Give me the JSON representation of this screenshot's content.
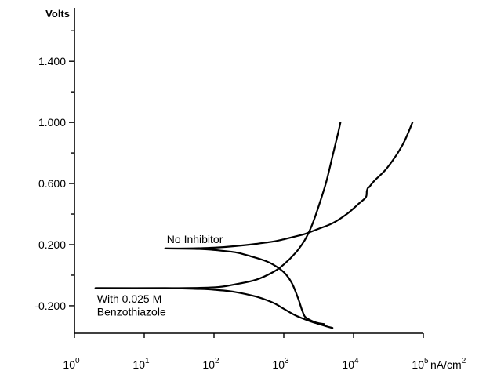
{
  "chart_data": {
    "type": "line",
    "title": "",
    "xlabel": "nA/cm2",
    "ylabel": "Volts",
    "x_scale": "log",
    "xlim": [
      1,
      100000
    ],
    "ylim": [
      -0.38,
      1.75
    ],
    "x_ticks": [
      {
        "value": 1,
        "base": "10",
        "exp": "0"
      },
      {
        "value": 10,
        "base": "10",
        "exp": "1"
      },
      {
        "value": 100,
        "base": "10",
        "exp": "2"
      },
      {
        "value": 1000,
        "base": "10",
        "exp": "3"
      },
      {
        "value": 10000,
        "base": "10",
        "exp": "4"
      },
      {
        "value": 100000,
        "base": "10",
        "exp": "5"
      }
    ],
    "x_unit": {
      "base": "nA/cm",
      "exp": "2"
    },
    "y_label_ticks": [
      {
        "value": 1.4,
        "label": "1.400"
      },
      {
        "value": 1.0,
        "label": "1.000"
      },
      {
        "value": 0.6,
        "label": "0.600"
      },
      {
        "value": 0.2,
        "label": "0.200"
      },
      {
        "value": -0.2,
        "label": "-0.200"
      }
    ],
    "y_minor_ticks": [
      1.6,
      1.2,
      0.8,
      0.4,
      0.0
    ],
    "grid": false,
    "legend": "none",
    "annotations": [
      {
        "text": "No Inhibitor",
        "x": 20,
        "y": 0.235
      },
      {
        "text": "With 0.025 M",
        "x": 2,
        "y": -0.155
      },
      {
        "text": "Benzothiazole",
        "x": 2,
        "y": -0.24
      }
    ],
    "series": [
      {
        "key": "no-inhibitor-anodic",
        "x": [
          20,
          40,
          100,
          200,
          400,
          700,
          1000,
          1500,
          2000,
          3000,
          5000,
          8000,
          12000,
          15000,
          15500,
          16000,
          17000,
          20000,
          30000,
          50000,
          70000
        ],
        "y": [
          0.175,
          0.175,
          0.18,
          0.19,
          0.205,
          0.22,
          0.235,
          0.255,
          0.27,
          0.3,
          0.34,
          0.4,
          0.47,
          0.51,
          0.55,
          0.57,
          0.58,
          0.62,
          0.7,
          0.85,
          1.0
        ]
      },
      {
        "key": "no-inhibitor-cathodic",
        "x": [
          20,
          60,
          100,
          200,
          300,
          500,
          700,
          1000,
          1300,
          1600,
          1800,
          2000,
          2300,
          2700,
          3200,
          3800
        ],
        "y": [
          0.175,
          0.172,
          0.165,
          0.15,
          0.13,
          0.1,
          0.07,
          0.02,
          -0.05,
          -0.15,
          -0.22,
          -0.27,
          -0.29,
          -0.305,
          -0.315,
          -0.32
        ]
      },
      {
        "key": "benzothiazole-anodic",
        "x": [
          2,
          20,
          100,
          200,
          400,
          700,
          1000,
          1500,
          2000,
          2500,
          3000,
          4000,
          5000,
          6000,
          6500
        ],
        "y": [
          -0.085,
          -0.085,
          -0.08,
          -0.06,
          -0.03,
          0.02,
          0.07,
          0.15,
          0.23,
          0.32,
          0.42,
          0.6,
          0.78,
          0.93,
          1.0
        ]
      },
      {
        "key": "benzothiazole-cathodic",
        "x": [
          2,
          20,
          60,
          100,
          200,
          400,
          700,
          1000,
          1500,
          2500,
          3500,
          4500,
          5000
        ],
        "y": [
          -0.085,
          -0.085,
          -0.09,
          -0.095,
          -0.11,
          -0.14,
          -0.18,
          -0.22,
          -0.265,
          -0.305,
          -0.325,
          -0.34,
          -0.345
        ]
      }
    ]
  }
}
